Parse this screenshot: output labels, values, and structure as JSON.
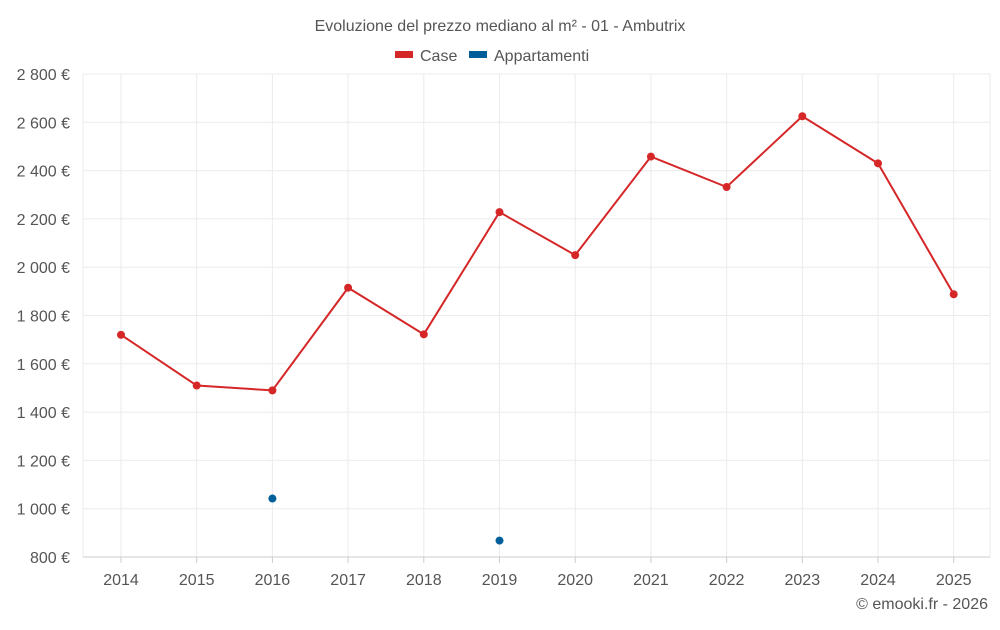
{
  "chart_data": {
    "type": "line",
    "title": "Evoluzione del prezzo mediano al m² - 01 - Ambutrix",
    "xlabel": "",
    "ylabel": "",
    "categories": [
      "2014",
      "2015",
      "2016",
      "2017",
      "2018",
      "2019",
      "2020",
      "2021",
      "2022",
      "2023",
      "2024",
      "2025"
    ],
    "ylim": [
      800,
      2800
    ],
    "yticks": [
      800,
      1000,
      1200,
      1400,
      1600,
      1800,
      2000,
      2200,
      2400,
      2600,
      2800
    ],
    "ytick_labels": [
      "800 €",
      "1 000 €",
      "1 200 €",
      "1 400 €",
      "1 600 €",
      "1 800 €",
      "2 000 €",
      "2 200 €",
      "2 400 €",
      "2 600 €",
      "2 800 €"
    ],
    "grid": true,
    "legend_position": "top-center",
    "series": [
      {
        "name": "Case",
        "color": "#d62728",
        "values": [
          1720,
          1510,
          1490,
          1915,
          1722,
          2228,
          2050,
          2458,
          2332,
          2625,
          2430,
          1888
        ]
      },
      {
        "name": "Appartamenti",
        "color": "#005f99",
        "values": [
          null,
          null,
          1042,
          null,
          null,
          868,
          null,
          null,
          null,
          null,
          null,
          null
        ]
      }
    ]
  },
  "footer": {
    "credit": "© emooki.fr - 2026"
  }
}
